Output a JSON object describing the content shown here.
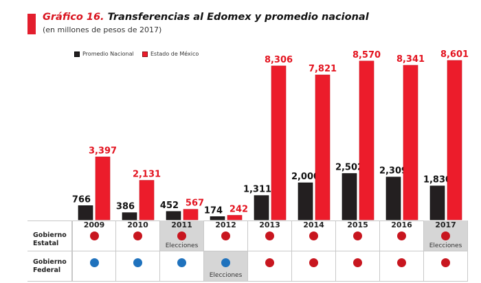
{
  "header": {
    "title_number": "Gráfico 16.",
    "title_text": " Transferencias al Edomex y promedio nacional",
    "subtitle": "(en millones de pesos de 2017)"
  },
  "colors": {
    "promedio_nacional": "#231f20",
    "estado_de_mexico": "#ec1c2b",
    "dot_red": "#c8161f",
    "dot_blue": "#1f72bd",
    "election_cell": "#d6d6d6"
  },
  "chart_data": {
    "type": "bar",
    "title": "Gráfico 16. Transferencias al Edomex y promedio nacional",
    "subtitle": "(en millones de pesos de 2017)",
    "xlabel": "",
    "ylabel": "",
    "ylim": [
      0,
      8601
    ],
    "grid": false,
    "legend_position": "top-left",
    "categories": [
      "2009",
      "2010",
      "2011",
      "2012",
      "2013",
      "2014",
      "2015",
      "2016",
      "2017"
    ],
    "series": [
      {
        "name": "Promedio Nacional",
        "values": [
          766,
          386,
          452,
          174,
          1311,
          2000,
          2502,
          2309,
          1830
        ],
        "labels": [
          "766",
          "386",
          "452",
          "174",
          "1,311",
          "2,000",
          "2,502",
          "2,309",
          "1,830"
        ]
      },
      {
        "name": "Estado de México",
        "values": [
          3397,
          2131,
          567,
          242,
          8306,
          7821,
          8570,
          8341,
          8601
        ],
        "labels": [
          "3,397",
          "2,131",
          "567",
          "242",
          "8,306",
          "7,821",
          "8,570",
          "8,341",
          "8,601"
        ]
      }
    ]
  },
  "table": {
    "rows": [
      {
        "label_line1": "Gobierno",
        "label_line2": "Estatal",
        "dots": [
          "red",
          "red",
          "red",
          "red",
          "red",
          "red",
          "red",
          "red",
          "red"
        ],
        "elections": [
          false,
          false,
          true,
          false,
          false,
          false,
          false,
          false,
          true
        ]
      },
      {
        "label_line1": "Gobierno",
        "label_line2": "Federal",
        "dots": [
          "blue",
          "blue",
          "blue",
          "blue",
          "red",
          "red",
          "red",
          "red",
          "red"
        ],
        "elections": [
          false,
          false,
          false,
          true,
          false,
          false,
          false,
          false,
          false
        ]
      }
    ],
    "election_label": "Elecciones"
  }
}
